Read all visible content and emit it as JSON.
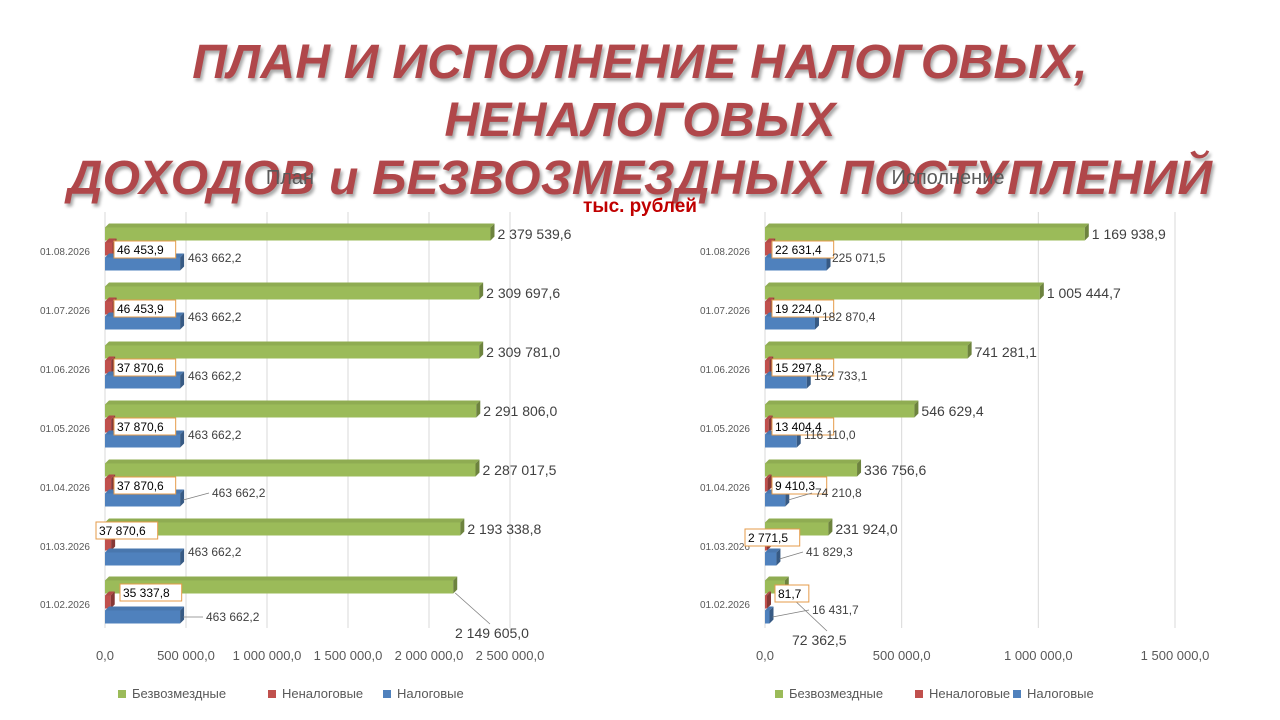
{
  "title_line1": "ПЛАН И ИСПОЛНЕНИЕ НАЛОГОВЫХ, НЕНАЛОГОВЫХ",
  "title_line2": "ДОХОДОВ и БЕЗВОЗМЕЗДНЫХ ПОСТУПЛЕНИЙ",
  "unit": "тыс. рублей",
  "colors": {
    "title": "#b0474a",
    "unit": "#c00000",
    "green": "#9bbb59",
    "red": "#c0504d",
    "blue": "#4f81bd",
    "grid": "#d9d9d9",
    "text": "#595959"
  },
  "chart_data": [
    {
      "type": "bar",
      "orientation": "horizontal",
      "title": "План",
      "categories": [
        "01.08.2026",
        "01.07.2026",
        "01.06.2026",
        "01.05.2026",
        "01.04.2026",
        "01.03.2026",
        "01.02.2026"
      ],
      "series": [
        {
          "name": "Безвозмездные",
          "color": "#9bbb59",
          "values": [
            2379539.6,
            2309697.6,
            2309781.0,
            2291806.0,
            2287017.5,
            2193338.8,
            2149605.0
          ],
          "labels": [
            "2 379 539,6",
            "2 309 697,6",
            "2 309 781,0",
            "2 291 806,0",
            "2 287 017,5",
            "2 193 338,8",
            "2 149 605,0"
          ]
        },
        {
          "name": "Неналоговые",
          "color": "#c0504d",
          "values": [
            46453.9,
            46453.9,
            37870.6,
            37870.6,
            37870.6,
            37870.6,
            35337.8
          ],
          "labels": [
            "46 453,9",
            "46 453,9",
            "37 870,6",
            "37 870,6",
            "37 870,6",
            "37 870,6",
            "35 337,8"
          ]
        },
        {
          "name": "Налоговые",
          "color": "#4f81bd",
          "values": [
            463662.2,
            463662.2,
            463662.2,
            463662.2,
            463662.2,
            463662.2,
            463662.2
          ],
          "labels": [
            "463 662,2",
            "463 662,2",
            "463 662,2",
            "463 662,2",
            "463 662,2",
            "463 662,2",
            "463 662,2"
          ]
        }
      ],
      "xlim": [
        0,
        2500000
      ],
      "x_ticks": [
        "0,0",
        "500 000,0",
        "1 000 000,0",
        "1 500 000,0",
        "2 000 000,0",
        "2 500 000,0"
      ],
      "grid": true,
      "legend": "bottom"
    },
    {
      "type": "bar",
      "orientation": "horizontal",
      "title": "Исполнение",
      "categories": [
        "01.08.2026",
        "01.07.2026",
        "01.06.2026",
        "01.05.2026",
        "01.04.2026",
        "01.03.2026",
        "01.02.2026"
      ],
      "series": [
        {
          "name": "Безвозмездные",
          "color": "#9bbb59",
          "values": [
            1169938.9,
            1005444.7,
            741281.1,
            546629.4,
            336756.6,
            231924.0,
            72362.5
          ],
          "labels": [
            "1 169 938,9",
            "1 005 444,7",
            "741 281,1",
            "546 629,4",
            "336 756,6",
            "231 924,0",
            "72 362,5"
          ]
        },
        {
          "name": "Неналоговые",
          "color": "#c0504d",
          "values": [
            22631.4,
            19224.0,
            15297.8,
            13404.4,
            9410.3,
            2771.5,
            81.7
          ],
          "labels": [
            "22 631,4",
            "19 224,0",
            "15 297,8",
            "13 404,4",
            "9 410,3",
            "2 771,5",
            "81,7"
          ]
        },
        {
          "name": "Налоговые",
          "color": "#4f81bd",
          "values": [
            225071.5,
            182870.4,
            152733.1,
            116110.0,
            74210.8,
            41829.3,
            16431.7
          ],
          "labels": [
            "225 071,5",
            "182 870,4",
            "152 733,1",
            "116 110,0",
            "74 210,8",
            "41 829,3",
            "16 431,7"
          ]
        }
      ],
      "xlim": [
        0,
        1500000
      ],
      "x_ticks": [
        "0,0",
        "500 000,0",
        "1 000 000,0",
        "1 500 000,0"
      ],
      "grid": true,
      "legend": "bottom"
    }
  ]
}
